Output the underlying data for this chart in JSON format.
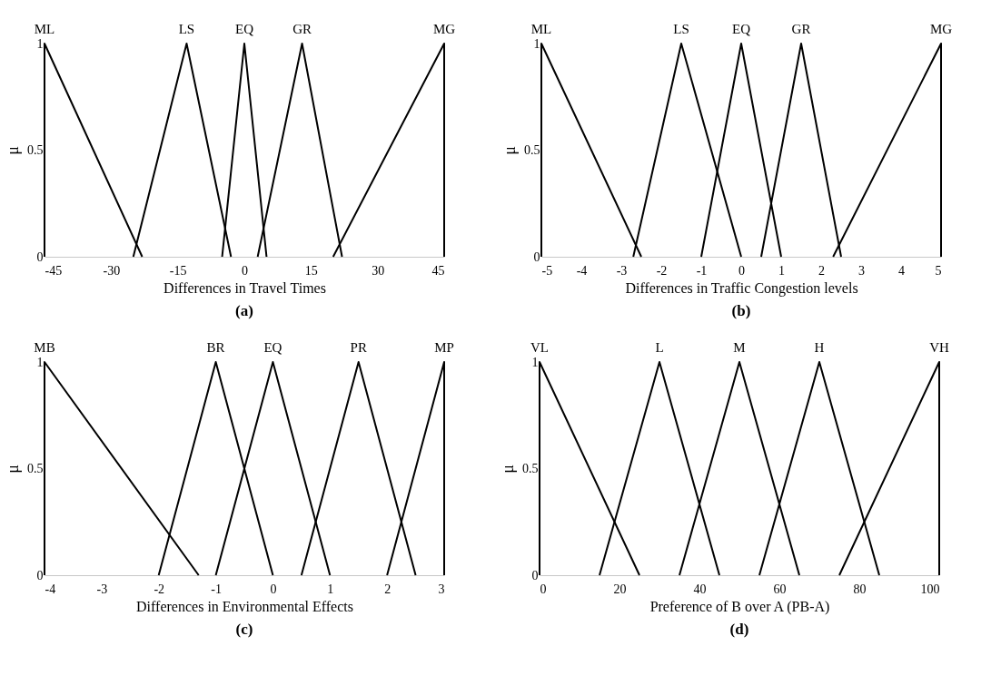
{
  "chart_data": [
    {
      "type": "line",
      "xlabel": "Differences in Travel Times",
      "ylabel": "μ",
      "xlim": [
        -45,
        45
      ],
      "xticks": [
        -45,
        -30,
        -15,
        0,
        15,
        30,
        45
      ],
      "ylim": [
        0,
        1
      ],
      "yticks": [
        0,
        0.5,
        1
      ],
      "grid": false,
      "legend": false,
      "marker": "none",
      "line_style": "solid",
      "annotations": [
        "(a)"
      ],
      "series": [
        {
          "name": "ML",
          "color": "#000000",
          "x": [
            -45,
            -45,
            -23
          ],
          "values": [
            0,
            1,
            0
          ]
        },
        {
          "name": "LS",
          "color": "#000000",
          "x": [
            -25,
            -13,
            -3
          ],
          "values": [
            0,
            1,
            0
          ]
        },
        {
          "name": "EQ",
          "color": "#000000",
          "x": [
            -5,
            0,
            5
          ],
          "values": [
            0,
            1,
            0
          ]
        },
        {
          "name": "GR",
          "color": "#000000",
          "x": [
            3,
            13,
            22
          ],
          "values": [
            0,
            1,
            0
          ]
        },
        {
          "name": "MG",
          "color": "#000000",
          "x": [
            20,
            45,
            45
          ],
          "values": [
            0,
            1,
            0
          ]
        }
      ]
    },
    {
      "type": "line",
      "xlabel": "Differences in Traffic Congestion levels",
      "ylabel": "μ",
      "xlim": [
        -5,
        5
      ],
      "xticks": [
        -5,
        -4,
        -3,
        -2,
        -1,
        0,
        1,
        2,
        3,
        4,
        5
      ],
      "ylim": [
        0,
        1
      ],
      "yticks": [
        0,
        0.5,
        1
      ],
      "grid": false,
      "legend": false,
      "marker": "none",
      "line_style": "solid",
      "annotations": [
        "(b)"
      ],
      "series": [
        {
          "name": "ML",
          "color": "#000000",
          "x": [
            -5,
            -5,
            -2.5
          ],
          "values": [
            0,
            1,
            0
          ]
        },
        {
          "name": "LS",
          "color": "#000000",
          "x": [
            -2.7,
            -1.5,
            0
          ],
          "values": [
            0,
            1,
            0
          ]
        },
        {
          "name": "EQ",
          "color": "#000000",
          "x": [
            -1,
            0,
            1
          ],
          "values": [
            0,
            1,
            0
          ]
        },
        {
          "name": "GR",
          "color": "#000000",
          "x": [
            0.5,
            1.5,
            2.5
          ],
          "values": [
            0,
            1,
            0
          ]
        },
        {
          "name": "MG",
          "color": "#000000",
          "x": [
            2.3,
            5,
            5
          ],
          "values": [
            0,
            1,
            0
          ]
        }
      ]
    },
    {
      "type": "line",
      "xlabel": "Differences in Environmental Effects",
      "ylabel": "μ",
      "xlim": [
        -4,
        3
      ],
      "xticks": [
        -4,
        -3,
        -2,
        -1,
        0,
        1,
        2,
        3
      ],
      "ylim": [
        0,
        1
      ],
      "yticks": [
        0,
        0.5,
        1
      ],
      "grid": false,
      "legend": false,
      "marker": "none",
      "line_style": "solid",
      "annotations": [
        "(c)"
      ],
      "series": [
        {
          "name": "MB",
          "color": "#000000",
          "x": [
            -4,
            -4,
            -1.3
          ],
          "values": [
            0,
            1,
            0
          ]
        },
        {
          "name": "BR",
          "color": "#000000",
          "x": [
            -2,
            -1,
            0
          ],
          "values": [
            0,
            1,
            0
          ]
        },
        {
          "name": "EQ",
          "color": "#000000",
          "x": [
            -1,
            0,
            1
          ],
          "values": [
            0,
            1,
            0
          ]
        },
        {
          "name": "PR",
          "color": "#000000",
          "x": [
            0.5,
            1.5,
            2.5
          ],
          "values": [
            0,
            1,
            0
          ]
        },
        {
          "name": "MP",
          "color": "#000000",
          "x": [
            2,
            3,
            3
          ],
          "values": [
            0,
            1,
            0
          ]
        }
      ]
    },
    {
      "type": "line",
      "xlabel": "Preference of B over A (PB-A)",
      "ylabel": "μ",
      "xlim": [
        0,
        100
      ],
      "xticks": [
        0,
        20,
        40,
        60,
        80,
        100
      ],
      "ylim": [
        0,
        1
      ],
      "yticks": [
        0,
        0.5,
        1
      ],
      "grid": false,
      "legend": false,
      "marker": "none",
      "line_style": "solid",
      "annotations": [
        "(d)"
      ],
      "series": [
        {
          "name": "VL",
          "color": "#000000",
          "x": [
            0,
            0,
            25
          ],
          "values": [
            0,
            1,
            0
          ]
        },
        {
          "name": "L",
          "color": "#000000",
          "x": [
            15,
            30,
            45
          ],
          "values": [
            0,
            1,
            0
          ]
        },
        {
          "name": "M",
          "color": "#000000",
          "x": [
            35,
            50,
            65
          ],
          "values": [
            0,
            1,
            0
          ]
        },
        {
          "name": "H",
          "color": "#000000",
          "x": [
            55,
            70,
            85
          ],
          "values": [
            0,
            1,
            0
          ]
        },
        {
          "name": "VH",
          "color": "#000000",
          "x": [
            75,
            100,
            100
          ],
          "values": [
            0,
            1,
            0
          ]
        }
      ]
    }
  ]
}
